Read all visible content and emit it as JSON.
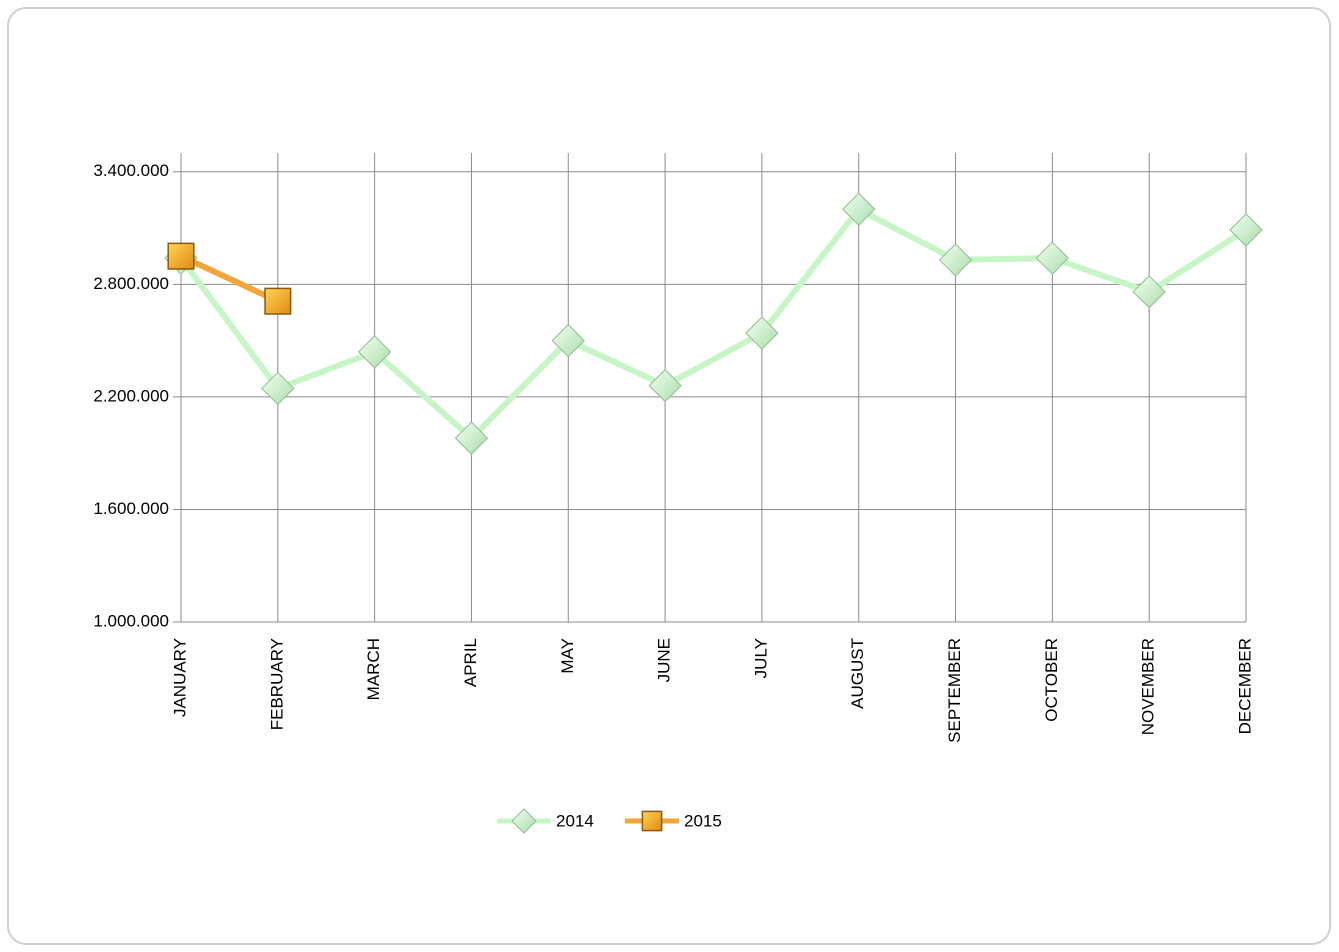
{
  "chart_data": {
    "type": "line",
    "categories": [
      "JANUARY",
      "FEBRUARY",
      "MARCH",
      "APRIL",
      "MAY",
      "JUNE",
      "JULY",
      "AUGUST",
      "SEPTEMBER",
      "OCTOBER",
      "NOVEMBER",
      "DECEMBER"
    ],
    "series": [
      {
        "name": "2014",
        "color": "#c6f5c6",
        "marker": "diamond",
        "values": [
          2940000,
          2245000,
          2440000,
          1980000,
          2500000,
          2260000,
          2540000,
          3200000,
          2930000,
          2940000,
          2760000,
          3090000
        ]
      },
      {
        "name": "2015",
        "color": "#f2a63a",
        "marker": "square",
        "values": [
          2950000,
          2710000,
          null,
          null,
          null,
          null,
          null,
          null,
          null,
          null,
          null,
          null
        ]
      }
    ],
    "ylim": [
      1000000,
      3500000
    ],
    "yticks": [
      {
        "value": 1000000,
        "label": "1.000.000"
      },
      {
        "value": 1600000,
        "label": "1.600.000"
      },
      {
        "value": 2200000,
        "label": "2.200.000"
      },
      {
        "value": 2800000,
        "label": "2.800.000"
      },
      {
        "value": 3400000,
        "label": "3.400.000"
      }
    ],
    "grid": true,
    "legend": "bottom"
  }
}
